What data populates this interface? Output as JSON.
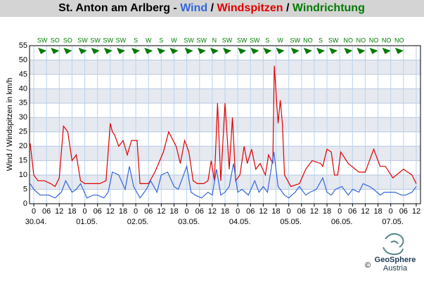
{
  "chart_data": {
    "type": "line",
    "title_parts": [
      {
        "text": "St. Anton am Arlberg - ",
        "color": "#000000"
      },
      {
        "text": "Wind",
        "color": "#3366dd"
      },
      {
        "text": " / ",
        "color": "#000000"
      },
      {
        "text": "Windspitzen",
        "color": "#e00000"
      },
      {
        "text": " / ",
        "color": "#000000"
      },
      {
        "text": "Windrichtung",
        "color": "#007a00"
      }
    ],
    "y_label": "Wind / Windspitzen in km/h",
    "xlim": [
      -2,
      182
    ],
    "ylim": [
      0,
      55
    ],
    "yticks": [
      0,
      5,
      10,
      15,
      20,
      25,
      30,
      35,
      40,
      45,
      50,
      55
    ],
    "xticks": [
      0,
      {
        "value": 6,
        "label": "06"
      },
      12,
      18,
      {
        "value": 24,
        "label": "0"
      },
      {
        "value": 30,
        "label": "06"
      },
      {
        "value": 36,
        "label": "12"
      },
      {
        "value": 42,
        "label": "18"
      },
      {
        "value": 48,
        "label": "0"
      },
      {
        "value": 54,
        "label": "06"
      },
      {
        "value": 60,
        "label": "12"
      },
      {
        "value": 66,
        "label": "18"
      },
      {
        "value": 72,
        "label": "0"
      },
      {
        "value": 78,
        "label": "06"
      },
      {
        "value": 84,
        "label": "12"
      },
      {
        "value": 90,
        "label": "18"
      },
      {
        "value": 96,
        "label": "0"
      },
      {
        "value": 102,
        "label": "06"
      },
      {
        "value": 108,
        "label": "12"
      },
      {
        "value": 114,
        "label": "18"
      },
      {
        "value": 120,
        "label": "0"
      },
      {
        "value": 126,
        "label": "06"
      },
      {
        "value": 132,
        "label": "12"
      },
      {
        "value": 138,
        "label": "18"
      },
      {
        "value": 144,
        "label": "0"
      },
      {
        "value": 150,
        "label": "06"
      },
      {
        "value": 156,
        "label": "12"
      },
      {
        "value": 162,
        "label": "18"
      },
      {
        "value": 168,
        "label": "0"
      },
      {
        "value": 174,
        "label": "06"
      },
      {
        "value": 180,
        "label": "12"
      }
    ],
    "date_labels": [
      {
        "value": 0,
        "label": "30.04."
      },
      {
        "value": 24,
        "label": "01.05."
      },
      {
        "value": 48,
        "label": "02.05."
      },
      {
        "value": 72,
        "label": "03.05."
      },
      {
        "value": 96,
        "label": "04.05."
      },
      {
        "value": 120,
        "label": "05.05."
      },
      {
        "value": 144,
        "label": "06.05."
      },
      {
        "value": 168,
        "label": "07.05."
      }
    ],
    "grid": true,
    "directions": [
      {
        "label": "SW",
        "x": 4
      },
      {
        "label": "SO",
        "x": 10
      },
      {
        "label": "SO",
        "x": 16
      },
      {
        "label": "SW",
        "x": 23
      },
      {
        "label": "SW",
        "x": 29
      },
      {
        "label": "SW",
        "x": 35
      },
      {
        "label": "SW",
        "x": 41
      },
      {
        "label": "S",
        "x": 48
      },
      {
        "label": "W",
        "x": 54
      },
      {
        "label": "S",
        "x": 60
      },
      {
        "label": "W",
        "x": 66
      },
      {
        "label": "SW",
        "x": 73
      },
      {
        "label": "SW",
        "x": 79
      },
      {
        "label": "N",
        "x": 85
      },
      {
        "label": "SW",
        "x": 91
      },
      {
        "label": "SW",
        "x": 98
      },
      {
        "label": "SW",
        "x": 104
      },
      {
        "label": "S",
        "x": 110
      },
      {
        "label": "W",
        "x": 116
      },
      {
        "label": "SW",
        "x": 123
      },
      {
        "label": "NO",
        "x": 129
      },
      {
        "label": "S",
        "x": 135
      },
      {
        "label": "SW",
        "x": 141
      },
      {
        "label": "NO",
        "x": 148
      },
      {
        "label": "NO",
        "x": 154
      },
      {
        "label": "NO",
        "x": 160
      },
      {
        "label": "NO",
        "x": 166
      },
      {
        "label": "NO",
        "x": 172
      }
    ],
    "direction_color": "#007a00",
    "series": [
      {
        "name": "Windspitzen",
        "color": "#e00000",
        "x": [
          -1.7,
          0,
          2,
          5,
          8,
          10,
          12,
          14,
          16,
          18,
          20,
          22,
          24,
          26,
          28,
          31,
          34,
          36,
          37,
          38,
          40,
          42,
          44,
          46,
          48.6,
          50,
          54,
          57,
          61,
          63.5,
          67,
          69,
          71,
          73,
          75,
          77,
          80,
          82,
          83.5,
          85,
          86.5,
          88,
          90,
          92,
          93.5,
          95,
          97,
          99,
          100.5,
          102.5,
          104.5,
          106.5,
          109,
          110.5,
          112.5,
          113.2,
          115,
          116,
          117,
          118,
          121,
          125,
          128,
          131,
          135,
          136,
          138,
          140,
          141.5,
          143,
          144.5,
          148,
          153,
          156,
          160,
          163,
          165.5,
          169,
          174,
          178,
          180
        ],
        "values": [
          21,
          10,
          8,
          8,
          7,
          6,
          9,
          27,
          25,
          15,
          17,
          8,
          7,
          7,
          7,
          7,
          8,
          28,
          25,
          24,
          20,
          22,
          17,
          22,
          22,
          7,
          7,
          11,
          18,
          25,
          20,
          14,
          22,
          18,
          8,
          7,
          7,
          8,
          15,
          8,
          35,
          8,
          35,
          12,
          30,
          8,
          10,
          20,
          14,
          19,
          12,
          14,
          10,
          17,
          14,
          48,
          28,
          36,
          28,
          10,
          6,
          7,
          12,
          15,
          14,
          13,
          19,
          18,
          10,
          10,
          18,
          14,
          11,
          11,
          19,
          13,
          13,
          9,
          12,
          10,
          7
        ]
      },
      {
        "name": "Wind",
        "color": "#3366dd",
        "x": [
          -1.7,
          0,
          3,
          7,
          10,
          13,
          15,
          18,
          20,
          22,
          25,
          28,
          30,
          33,
          35,
          37,
          40,
          43,
          45,
          47,
          50,
          53,
          55,
          58,
          60,
          63,
          66,
          68,
          72,
          74,
          76,
          79,
          82,
          84,
          86,
          88,
          90,
          92,
          94,
          96,
          98,
          101,
          104,
          106,
          108,
          110,
          113,
          115,
          116,
          118,
          120,
          123,
          125,
          128,
          130,
          133,
          136,
          138,
          140,
          142,
          145,
          148,
          150,
          153,
          155,
          158,
          160,
          163,
          165,
          168,
          170,
          173,
          175,
          178,
          180
        ],
        "values": [
          7,
          5,
          3,
          3,
          2,
          4,
          8,
          4,
          5,
          7,
          2,
          3,
          3,
          2,
          4,
          11,
          10,
          5,
          13,
          6,
          2,
          5,
          8,
          4,
          10,
          11,
          6,
          5,
          13,
          4,
          3,
          2,
          4,
          3,
          12,
          3,
          4,
          6,
          14,
          4,
          5,
          3,
          8,
          4,
          6,
          4,
          18,
          6,
          5,
          3,
          2,
          4,
          6,
          3,
          4,
          5,
          9,
          4,
          3,
          5,
          6,
          3,
          5,
          4,
          7,
          6,
          5,
          3,
          4,
          4,
          4,
          3,
          3,
          4,
          6
        ]
      }
    ],
    "logo": {
      "name": "GeoSphere",
      "sub": "Austria",
      "copyright": "©"
    }
  }
}
